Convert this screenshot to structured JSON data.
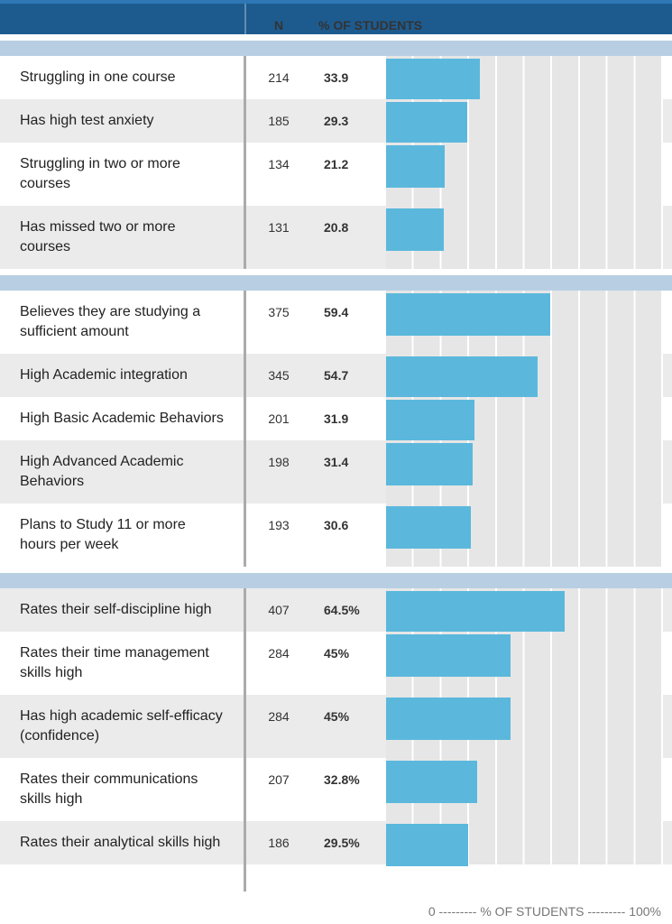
{
  "chart_data": {
    "type": "bar",
    "orientation": "horizontal",
    "columns": [
      "N",
      "% OF STUDENTS"
    ],
    "groups": [
      {
        "categories": [
          "Struggling in one course",
          "Has high test anxiety",
          "Struggling in two or more courses",
          "Has missed two or more courses"
        ],
        "n": [
          214,
          185,
          134,
          131
        ],
        "values": [
          33.9,
          29.3,
          21.2,
          20.8
        ]
      },
      {
        "categories": [
          "Believes they are studying a sufficient amount",
          "High Academic integration",
          "High Basic Academic Behaviors",
          "High Advanced Academic Behaviors",
          "Plans to Study 11 or more hours per week"
        ],
        "n": [
          375,
          345,
          201,
          198,
          193
        ],
        "values": [
          59.4,
          54.7,
          31.9,
          31.4,
          30.6
        ]
      },
      {
        "categories": [
          "Rates their self-discipline high",
          "Rates their time management skills high",
          "Has high academic self-efficacy (confidence)",
          "Rates their communications skills high",
          "Rates their analytical skills high"
        ],
        "n": [
          407,
          284,
          284,
          207,
          186
        ],
        "values": [
          64.5,
          45,
          45,
          32.8,
          29.5
        ],
        "value_labels": [
          "64.5%",
          "45%",
          "45%",
          "32.8%",
          "29.5%"
        ]
      }
    ],
    "value_label_suffix_groups": null,
    "xlim": [
      0,
      100
    ],
    "xlabel": "0 --------- % OF STUDENTS --------- 100%",
    "color": "#5bb8dc"
  }
}
